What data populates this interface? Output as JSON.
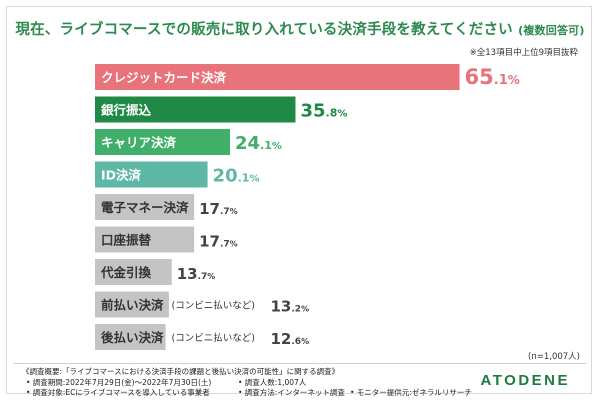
{
  "title": "現在、ライブコマースでの販売に取り入れている決済手段を教えてください",
  "title_suffix": "(複数回答可)",
  "note": "※全13項目中上位9項目抜粋",
  "sample_size": "(n=1,007人)",
  "footer": {
    "line1": "《調査概要:「ライブコマースにおける決済手段の課題と後払い決済の可能性」に関する調査》",
    "period": "• 調査期間:2022年7月29日(金)〜2022年7月30日(土)",
    "respondents": "• 調査人数:1,007人",
    "target": "• 調査対象:ECにライブコマースを導入している事業者",
    "method": "• 調査方法:インターネット調査",
    "provider": "• モニター提供元:ゼネラルリサーチ"
  },
  "logo": "ATODENE",
  "colors": {
    "accent_red": "#e9737b",
    "dark_green": "#1f8a45",
    "green": "#3faf6a",
    "teal": "#5fb8a6",
    "gray": "#c4c4c4",
    "title_green": "#2d8a4e"
  },
  "chart_data": {
    "type": "bar",
    "orientation": "horizontal",
    "categories": [
      "クレジットカード決済",
      "銀行振込",
      "キャリア決済",
      "ID決済",
      "電子マネー決済",
      "口座振替",
      "代金引換",
      "前払い決済",
      "後払い決済"
    ],
    "category_notes": [
      "",
      "",
      "",
      "",
      "",
      "",
      "",
      "(コンビニ払いなど)",
      "(コンビニ払いなど)"
    ],
    "values": [
      65.1,
      35.8,
      24.1,
      20.1,
      17.7,
      17.7,
      13.7,
      13.2,
      12.6
    ],
    "unit": "%",
    "bar_colors": [
      "#e9737b",
      "#1f8a45",
      "#3faf6a",
      "#5fb8a6",
      "#c4c4c4",
      "#c4c4c4",
      "#c4c4c4",
      "#c4c4c4",
      "#c4c4c4"
    ],
    "value_colors": [
      "#e9737b",
      "#1f8a45",
      "#3faf6a",
      "#5fb8a6",
      "#444444",
      "#444444",
      "#444444",
      "#444444",
      "#444444"
    ],
    "label_colors": [
      "#ffffff",
      "#ffffff",
      "#ffffff",
      "#ffffff",
      "#333333",
      "#333333",
      "#333333",
      "#333333",
      "#333333"
    ],
    "xlim": [
      0,
      100
    ],
    "grid": false,
    "legend": "none"
  }
}
